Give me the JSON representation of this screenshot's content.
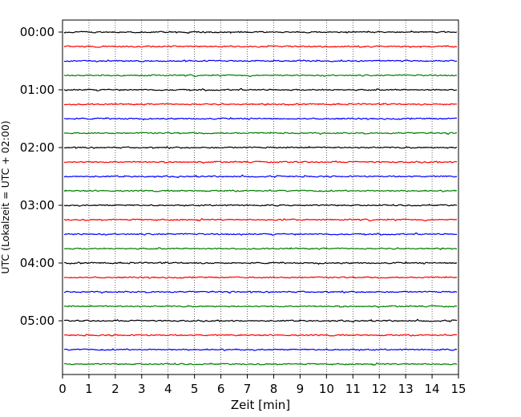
{
  "chart_data": {
    "type": "line",
    "title": "",
    "xlabel": "Zeit  [min]",
    "ylabel": "UTC (Lokalzeit = UTC + 02:00)",
    "xlim": [
      0,
      15
    ],
    "x_ticks": [
      "0",
      "1",
      "2",
      "3",
      "4",
      "5",
      "6",
      "7",
      "8",
      "9",
      "10",
      "11",
      "12",
      "13",
      "14",
      "15"
    ],
    "y_tick_labels": [
      "00:00",
      "01:00",
      "02:00",
      "03:00",
      "04:00",
      "05:00"
    ],
    "rows_per_hour": 4,
    "row_count": 24,
    "row_interval_min": 15,
    "trace_colors": [
      "#000000",
      "#ff0000",
      "#0000ff",
      "#008000"
    ],
    "grid": "vertical-dotted",
    "legend": "none"
  }
}
